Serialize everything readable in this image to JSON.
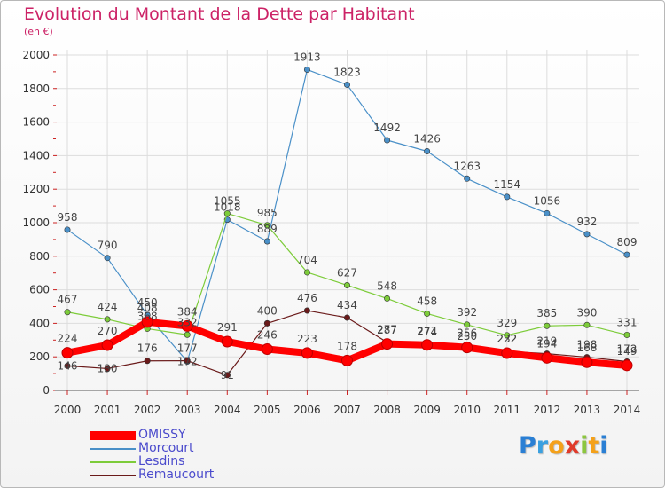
{
  "title": "Evolution du Montant de la Dette par Habitant",
  "subtitle": "(en €)",
  "chart_data": {
    "type": "line",
    "x": [
      "2000",
      "2001",
      "2002",
      "2003",
      "2004",
      "2005",
      "2006",
      "2007",
      "2008",
      "2009",
      "2010",
      "2011",
      "2012",
      "2013",
      "2014"
    ],
    "ylim": [
      0,
      2000
    ],
    "yticks": [
      0,
      200,
      400,
      600,
      800,
      1000,
      1200,
      1400,
      1600,
      1800,
      2000
    ],
    "grid": true,
    "legend_position": "bottom-left",
    "series": [
      {
        "name": "Morcourt",
        "color": "#4a90c8",
        "values": [
          958,
          790,
          450,
          172,
          1018,
          889,
          1913,
          1823,
          1492,
          1426,
          1263,
          1154,
          1056,
          932,
          809
        ]
      },
      {
        "name": "Lesdins",
        "color": "#7dcc3a",
        "values": [
          467,
          424,
          368,
          332,
          1055,
          985,
          704,
          627,
          548,
          458,
          392,
          329,
          385,
          390,
          331
        ]
      },
      {
        "name": "Remaucourt",
        "color": "#6a1a1a",
        "values": [
          146,
          130,
          176,
          177,
          91,
          400,
          476,
          434,
          287,
          274,
          250,
          232,
          219,
          198,
          172
        ]
      },
      {
        "name": "OMISSY",
        "color": "#ff0000",
        "values": [
          224,
          270,
          408,
          384,
          291,
          246,
          223,
          178,
          277,
          271,
          256,
          222,
          194,
          168,
          149
        ]
      }
    ]
  },
  "logo": {
    "letters": [
      "P",
      "r",
      "o",
      "x",
      "i",
      "t",
      "i"
    ],
    "colors": [
      "#2a7fd4",
      "#3aa0e0",
      "#f4a11a",
      "#e03a2a",
      "#8cc63f",
      "#f4a11a",
      "#2a7fd4"
    ]
  }
}
